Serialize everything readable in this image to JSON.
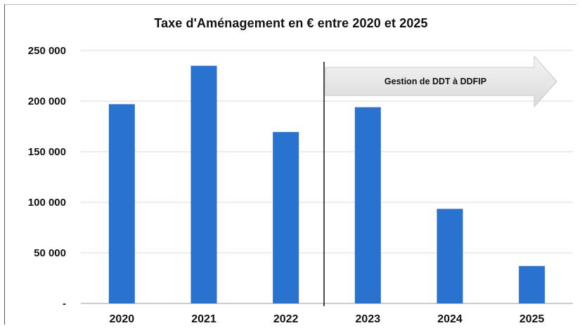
{
  "chart_data": {
    "type": "bar",
    "title": "Taxe d'Aménagement en € entre 2020 et 2025",
    "xlabel": "",
    "ylabel": "",
    "categories": [
      "2020",
      "2021",
      "2022",
      "2023",
      "2024",
      "2025"
    ],
    "values": [
      197000,
      235000,
      169500,
      194000,
      93500,
      37000
    ],
    "ylim": [
      0,
      250000
    ],
    "yticks": [
      0,
      50000,
      100000,
      150000,
      200000,
      250000
    ],
    "ytick_labels": [
      "-",
      "50 000",
      "100 000",
      "150 000",
      "200 000",
      "250 000"
    ],
    "grid": true,
    "bar_color": "#2a72cf",
    "annotation": {
      "text": "Gestion de DDT à DDFIP",
      "starts_between": [
        "2022",
        "2023"
      ],
      "arrow_color": "#e6e6e6"
    }
  }
}
